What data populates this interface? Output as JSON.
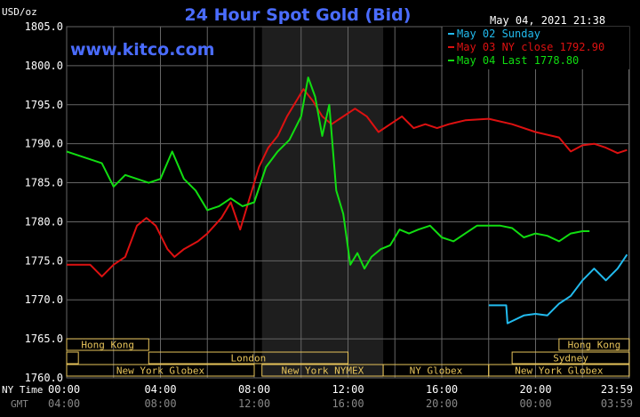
{
  "header": {
    "units": "USD/oz",
    "title": "24 Hour Spot Gold (Bid)",
    "datetime": "May 04, 2021 21:38",
    "watermark": "www.kitco.com"
  },
  "legend": [
    {
      "label": "May 02 Sunday",
      "color": "#22bbee"
    },
    {
      "label": "May 03 NY close 1792.90",
      "color": "#dd1111"
    },
    {
      "label": "May 04 Last 1778.80",
      "color": "#11dd11"
    }
  ],
  "row_labels": {
    "ny_time": "NY Time",
    "gmt": "GMT"
  },
  "ny_time_ticks": [
    "00:00",
    "04:00",
    "08:00",
    "12:00",
    "16:00",
    "20:00",
    "23:59"
  ],
  "gmt_ticks": [
    "04:00",
    "08:00",
    "12:00",
    "16:00",
    "20:00",
    "00:00",
    "03:59"
  ],
  "sessions": {
    "row1": [
      {
        "label": "Hong Kong",
        "start": 0,
        "end": 3.5
      },
      {
        "label": "Hong Kong",
        "start": 21,
        "end": 24
      }
    ],
    "row2": [
      {
        "label": "",
        "start": 0,
        "end": 0.5
      },
      {
        "label": "London",
        "start": 3.5,
        "end": 12
      },
      {
        "label": "Sydney",
        "start": 19,
        "end": 24
      }
    ],
    "row3": [
      {
        "label": "New York Globex",
        "start": 0,
        "end": 8
      },
      {
        "label": "New York NYMEX",
        "start": 8.33,
        "end": 13.5
      },
      {
        "label": "NY Globex",
        "start": 13.5,
        "end": 18
      },
      {
        "label": "New York Globex",
        "start": 18,
        "end": 24
      }
    ]
  },
  "colors": {
    "background": "#000000",
    "grid": "#666666",
    "axis_text": "#ffffff",
    "title": "#4a6cff",
    "session_border": "#e6c35a",
    "session_text": "#e6c35a",
    "nymex_shade": "#1e1e1e"
  },
  "chart_data": {
    "type": "line",
    "title": "24 Hour Spot Gold (Bid)",
    "ylabel": "USD/oz",
    "ylim": [
      1760,
      1805
    ],
    "xlim": [
      0,
      24
    ],
    "yticks": [
      1760,
      1765,
      1770,
      1775,
      1780,
      1785,
      1790,
      1795,
      1800,
      1805
    ],
    "ytick_labels": [
      "1760.0",
      "1765.0",
      "1770.0",
      "1775.0",
      "1780.0",
      "1785.0",
      "1790.0",
      "1795.0",
      "1800.0",
      "1805.0"
    ],
    "shaded_region": [
      8.33,
      13.5
    ],
    "grid": true,
    "series": [
      {
        "name": "May 02 Sunday",
        "color": "#22bbee",
        "x": [
          18.0,
          18.75,
          18.8,
          19.5,
          20.0,
          20.5,
          21.0,
          21.5,
          22.0,
          22.5,
          23.0,
          23.5,
          23.9
        ],
        "y": [
          1769.3,
          1769.3,
          1767.0,
          1768.0,
          1768.2,
          1768.0,
          1769.5,
          1770.5,
          1772.5,
          1774.0,
          1772.5,
          1774.0,
          1775.8
        ]
      },
      {
        "name": "May 03 NY close 1792.90",
        "color": "#dd1111",
        "x": [
          0.0,
          1.0,
          1.5,
          2.0,
          2.5,
          3.0,
          3.4,
          3.8,
          4.3,
          4.6,
          5.0,
          5.6,
          6.0,
          6.6,
          7.0,
          7.4,
          7.8,
          8.2,
          8.6,
          9.0,
          9.4,
          9.8,
          10.1,
          10.5,
          10.9,
          11.3,
          11.8,
          12.3,
          12.8,
          13.3,
          13.8,
          14.3,
          14.8,
          15.3,
          15.8,
          16.3,
          17.0,
          18.0,
          19.0,
          20.0,
          21.0,
          21.5,
          22.0,
          22.5,
          23.0,
          23.5,
          23.9
        ],
        "y": [
          1774.5,
          1774.5,
          1773.0,
          1774.5,
          1775.5,
          1779.5,
          1780.5,
          1779.5,
          1776.5,
          1775.5,
          1776.5,
          1777.5,
          1778.5,
          1780.5,
          1782.5,
          1779.0,
          1783.0,
          1787.0,
          1789.5,
          1791.0,
          1793.5,
          1795.5,
          1797.0,
          1795.5,
          1793.5,
          1792.5,
          1793.5,
          1794.5,
          1793.5,
          1791.5,
          1792.5,
          1793.5,
          1792.0,
          1792.5,
          1792.0,
          1792.5,
          1793.0,
          1793.2,
          1792.5,
          1791.5,
          1790.8,
          1789.0,
          1789.8,
          1790.0,
          1789.5,
          1788.8,
          1789.2
        ]
      },
      {
        "name": "May 04 Last 1778.80",
        "color": "#11dd11",
        "x": [
          0.0,
          0.5,
          1.0,
          1.5,
          2.0,
          2.5,
          3.0,
          3.5,
          4.0,
          4.5,
          5.0,
          5.5,
          6.0,
          6.5,
          7.0,
          7.5,
          8.0,
          8.5,
          9.0,
          9.5,
          10.0,
          10.3,
          10.6,
          10.9,
          11.2,
          11.5,
          11.8,
          12.1,
          12.4,
          12.7,
          13.0,
          13.4,
          13.8,
          14.2,
          14.6,
          15.0,
          15.5,
          16.0,
          16.5,
          17.0,
          17.5,
          18.0,
          18.5,
          19.0,
          19.5,
          20.0,
          20.5,
          21.0,
          21.5,
          22.0,
          22.3
        ],
        "y": [
          1789.0,
          1788.5,
          1788.0,
          1787.5,
          1784.5,
          1786.0,
          1785.5,
          1785.0,
          1785.5,
          1789.0,
          1785.5,
          1784.0,
          1781.5,
          1782.0,
          1783.0,
          1782.0,
          1782.5,
          1787.0,
          1789.0,
          1790.5,
          1793.5,
          1798.5,
          1796.0,
          1791.0,
          1795.0,
          1784.0,
          1781.0,
          1774.5,
          1776.0,
          1774.0,
          1775.5,
          1776.5,
          1777.0,
          1779.0,
          1778.5,
          1779.0,
          1779.5,
          1778.0,
          1777.5,
          1778.5,
          1779.5,
          1779.5,
          1779.5,
          1779.2,
          1778.0,
          1778.5,
          1778.2,
          1777.5,
          1778.5,
          1778.8,
          1778.8
        ]
      }
    ]
  }
}
